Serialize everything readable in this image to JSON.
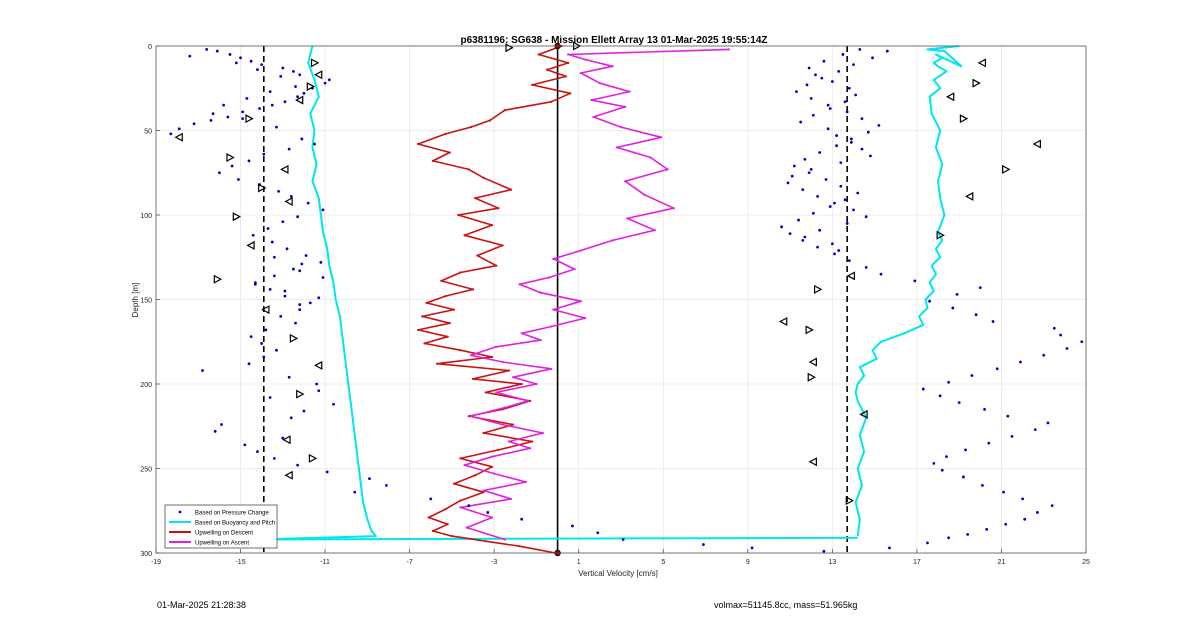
{
  "footer": {
    "left": "01-Mar-2025 21:28:38",
    "right": "volmax=51145.8cc, mass=51.965kg"
  },
  "colors": {
    "pressure_points": "#0000cc",
    "buoyancy": "#00e5ee",
    "descent": "#cc1111",
    "ascent": "#e020e0",
    "grid": "#e6e6e6",
    "dashed": "#000000"
  },
  "chart_data": {
    "type": "line",
    "title": "p6381196: SG638 - Mission Ellett Array 13 01-Mar-2025 19:55:14Z",
    "xlabel": "Vertical Velocity [cm/s]",
    "ylabel": "Depth [m]",
    "xlim": [
      -19,
      25
    ],
    "ylim": [
      0,
      300
    ],
    "y_reversed": true,
    "xticks": [
      -19,
      -15,
      -11,
      -7,
      -3,
      1,
      5,
      9,
      13,
      17,
      21,
      25
    ],
    "yticks": [
      0,
      50,
      100,
      150,
      200,
      250,
      300
    ],
    "grid": true,
    "legend_position": "bottom-left",
    "reference_lines": {
      "zero_line_x": 0,
      "dashed_x": [
        -13.9,
        13.7
      ]
    },
    "legend": [
      "Based on Pressure Change",
      "Based on Buoyancy and Pitch",
      "Upwelling on Descent",
      "Upwelling on Ascent"
    ],
    "series": [
      {
        "name": "Based on Buoyancy and Pitch",
        "kind": "line",
        "segments": [
          {
            "part": "descent",
            "x": [
              -11.6,
              -11.8,
              -11.5,
              -11.3,
              -11.7,
              -11.5,
              -11.6,
              -11.4,
              -11.6,
              -11.3,
              -11.2,
              -11.1,
              -10.9,
              -10.8,
              -10.6,
              -10.5,
              -10.3,
              -10.2,
              -10.1,
              -10.0,
              -9.9,
              -9.8,
              -9.7,
              -9.6,
              -9.5,
              -9.4,
              -9.3,
              -9.2,
              -9.0,
              -8.8,
              -8.6,
              -14.2
            ],
            "y": [
              0,
              10,
              20,
              30,
              40,
              50,
              60,
              70,
              80,
              90,
              100,
              110,
              120,
              130,
              140,
              150,
              160,
              170,
              180,
              190,
              200,
              210,
              220,
              230,
              240,
              250,
              260,
              270,
              280,
              287,
              290,
              292
            ]
          },
          {
            "part": "bottom",
            "x": [
              -14.2,
              14.2
            ],
            "y": [
              292,
              291
            ]
          },
          {
            "part": "ascent",
            "x": [
              14.2,
              14.3,
              14.1,
              14.4,
              14.2,
              14.5,
              14.3,
              14.6,
              14.2,
              14.1,
              14.2,
              14.5,
              14.3,
              15.1,
              14.9,
              15.3,
              16.4,
              17.3,
              17.1,
              17.5,
              17.4,
              17.8,
              17.6,
              17.9,
              17.7,
              18.1,
              17.9,
              18.2,
              18.0,
              18.3,
              18.1,
              18.0,
              18.2,
              17.9,
              18.1,
              17.7,
              17.6,
              18.1,
              17.8,
              18.4,
              18.0,
              17.8,
              18.2,
              17.9,
              19.1,
              18.3,
              17.5,
              19.0
            ],
            "y": [
              290,
              280,
              270,
              260,
              250,
              240,
              230,
              220,
              210,
              205,
              200,
              195,
              190,
              185,
              180,
              175,
              170,
              165,
              160,
              155,
              150,
              145,
              140,
              135,
              130,
              125,
              120,
              115,
              110,
              100,
              90,
              80,
              70,
              60,
              50,
              40,
              30,
              25,
              20,
              15,
              12,
              10,
              7,
              5,
              12,
              3,
              2,
              0
            ]
          }
        ]
      },
      {
        "name": "Upwelling on Descent",
        "kind": "line",
        "x": [
          0.2,
          -0.9,
          0.5,
          -0.5,
          0.4,
          -1.2,
          0.6,
          -0.3,
          -2.5,
          -3.2,
          -4.1,
          -5.3,
          -6.6,
          -5.1,
          -5.9,
          -4.2,
          -3.5,
          -2.2,
          -3.9,
          -2.8,
          -4.7,
          -3.1,
          -4.4,
          -2.6,
          -3.8,
          -2.9,
          -4.6,
          -5.5,
          -4.0,
          -5.3,
          -6.2,
          -4.9,
          -6.4,
          -5.1,
          -6.6,
          -5.2,
          -6.3,
          -4.6,
          -3.1,
          -5.7,
          -2.3,
          -4.0,
          -1.7,
          -3.4,
          -1.3,
          -2.6,
          -4.2,
          -2.1,
          -3.5,
          -1.2,
          -2.8,
          -4.6,
          -3.1,
          -3.9,
          -4.9,
          -3.5,
          -4.6,
          -5.3,
          -6.1,
          -5.2,
          -5.9,
          -5.0,
          -3.4,
          -1.8,
          -0.1
        ],
        "y": [
          0,
          5,
          10,
          14,
          18,
          23,
          28,
          33,
          38,
          44,
          48,
          52,
          58,
          63,
          68,
          73,
          78,
          85,
          90,
          96,
          100,
          106,
          112,
          118,
          124,
          130,
          134,
          139,
          144,
          148,
          152,
          156,
          160,
          164,
          168,
          172,
          176,
          180,
          184,
          188,
          192,
          197,
          200,
          205,
          210,
          215,
          219,
          224,
          229,
          234,
          239,
          244,
          249,
          254,
          259,
          264,
          269,
          274,
          279,
          283,
          287,
          290,
          293,
          296,
          300
        ]
      },
      {
        "name": "Upwelling on Ascent",
        "kind": "line",
        "x": [
          -2.5,
          -4.3,
          -3.1,
          -4.6,
          -2.2,
          -3.5,
          -1.5,
          -3.0,
          -4.4,
          -3.1,
          -1.3,
          -2.3,
          -0.7,
          -2.6,
          -4.1,
          -2.5,
          -1.4,
          -2.9,
          -1.0,
          -2.1,
          -0.3,
          -2.6,
          -4.1,
          -2.9,
          -0.8,
          -1.7,
          -0.3,
          1.3,
          -0.2,
          1.1,
          -0.8,
          -1.8,
          -0.4,
          0.8,
          -0.2,
          1.1,
          2.6,
          4.6,
          3.3,
          5.5,
          4.1,
          3.2,
          5.2,
          4.4,
          2.8,
          4.9,
          3.0,
          1.7,
          3.2,
          1.6,
          3.4,
          2.0,
          1.1,
          2.6,
          1.3,
          0.5,
          8.1
        ],
        "y": [
          292,
          285,
          279,
          273,
          268,
          263,
          258,
          253,
          248,
          243,
          238,
          234,
          229,
          224,
          219,
          214,
          210,
          205,
          200,
          196,
          191,
          187,
          183,
          178,
          174,
          170,
          166,
          161,
          156,
          151,
          146,
          141,
          137,
          132,
          126,
          121,
          115,
          109,
          102,
          96,
          88,
          80,
          73,
          66,
          60,
          54,
          48,
          42,
          36,
          32,
          27,
          22,
          16,
          12,
          8,
          5,
          2
        ]
      },
      {
        "name": "Based on Pressure Change",
        "kind": "points",
        "x": [
          -18.3,
          -17.9,
          -17.2,
          -16.4,
          -15.6,
          -14.9,
          -14.1,
          -13.5,
          -12.9,
          -12.3,
          -12.0,
          -11.6,
          -11.0,
          -10.8,
          -12.2,
          -12.5,
          -13.0,
          -14.0,
          -14.5,
          -15.0,
          -15.5,
          -16.1,
          -16.6,
          -17.4,
          -15.2,
          -14.2,
          -13.1,
          -12.4,
          -13.6,
          -14.7,
          -15.8,
          -16.3,
          -14.9,
          -13.3,
          -12.1,
          -11.5,
          -12.7,
          -13.9,
          -14.6,
          -15.4,
          -16.0,
          -15.1,
          -14.1,
          -13.2,
          -12.6,
          -11.8,
          -11.1,
          -12.3,
          -13.0,
          -13.7,
          -14.4,
          -13.5,
          -12.8,
          -11.9,
          -11.2,
          -12.5,
          -13.4,
          -14.3,
          -13.6,
          -12.9,
          -11.7,
          -12.2,
          -13.1,
          -12.4,
          -13.8,
          -14.5,
          -14.0,
          -13.3,
          -13.9,
          -14.6,
          -16.8,
          -12.7,
          -11.4,
          -11.3,
          -13.6,
          -10.6,
          -12.0,
          -12.6,
          -15.9,
          -16.2,
          -13.0,
          -14.8,
          -14.2,
          -13.4,
          -12.3,
          -10.9,
          -8.9,
          -8.1,
          -9.6,
          -6.0,
          -4.2,
          -3.3,
          -1.7,
          0.7,
          1.9,
          3.1,
          6.9,
          9.2,
          12.6,
          15.7,
          17.5,
          18.5,
          19.4,
          20.3,
          21.2,
          22.1,
          22.7,
          23.4,
          22.0,
          21.1,
          20.1,
          19.2,
          18.2,
          17.8,
          18.4,
          19.3,
          20.4,
          21.5,
          22.6,
          23.2,
          21.3,
          20.2,
          19.0,
          18.1,
          17.3,
          18.5,
          19.6,
          20.8,
          21.9,
          23.0,
          24.1,
          24.8,
          23.8,
          23.5,
          20.6,
          19.8,
          18.7,
          17.6,
          18.9,
          20.0,
          16.9,
          15.3,
          14.6,
          13.8,
          13.1,
          12.3,
          11.6,
          11.0,
          10.6,
          11.4,
          12.1,
          12.9,
          13.6,
          14.2,
          13.4,
          12.7,
          11.9,
          11.2,
          11.7,
          12.4,
          13.2,
          13.9,
          14.7,
          15.2,
          14.4,
          13.7,
          12.8,
          12.0,
          11.3,
          11.8,
          12.5,
          13.3,
          14.0,
          14.9,
          15.6,
          14.3,
          13.5,
          12.6,
          11.9,
          12.2,
          13.0,
          13.8,
          14.1,
          13.6,
          12.9,
          12.1,
          11.5,
          12.8,
          13.2,
          13.9,
          14.4,
          14.8,
          13.4,
          12.0,
          11.1,
          10.9,
          11.6,
          12.3,
          13.1,
          14.0,
          14.6,
          13.7,
          12.4,
          11.7,
          13.0,
          13.3,
          -13.4,
          -12.1,
          -12.2,
          -11.1,
          -14.3,
          -12.9,
          -11.3,
          -12.2
        ],
        "y": [
          52,
          49,
          46,
          44,
          42,
          39,
          37,
          35,
          33,
          30,
          28,
          25,
          22,
          20,
          17,
          15,
          13,
          11,
          9,
          7,
          5,
          3,
          2,
          6,
          10,
          14,
          18,
          24,
          27,
          31,
          35,
          40,
          43,
          48,
          55,
          58,
          61,
          64,
          68,
          71,
          75,
          79,
          82,
          86,
          89,
          93,
          97,
          101,
          104,
          108,
          112,
          116,
          120,
          124,
          128,
          132,
          136,
          140,
          144,
          148,
          152,
          156,
          160,
          164,
          168,
          172,
          176,
          180,
          184,
          188,
          192,
          196,
          200,
          204,
          208,
          212,
          216,
          220,
          224,
          228,
          232,
          236,
          240,
          244,
          248,
          252,
          256,
          260,
          264,
          268,
          272,
          276,
          280,
          284,
          288,
          292,
          295,
          297,
          299,
          297,
          294,
          291,
          289,
          286,
          283,
          280,
          276,
          272,
          268,
          264,
          260,
          255,
          251,
          247,
          243,
          239,
          235,
          231,
          227,
          223,
          219,
          215,
          211,
          207,
          203,
          199,
          195,
          191,
          187,
          183,
          179,
          175,
          171,
          167,
          163,
          159,
          155,
          151,
          147,
          143,
          139,
          135,
          131,
          127,
          123,
          119,
          115,
          111,
          107,
          103,
          99,
          95,
          91,
          87,
          83,
          79,
          75,
          71,
          67,
          63,
          59,
          55,
          51,
          47,
          43,
          39,
          35,
          31,
          27,
          23,
          19,
          15,
          11,
          7,
          3,
          2,
          5,
          9,
          13,
          17,
          21,
          25,
          29,
          33,
          37,
          41,
          45,
          49,
          53,
          57,
          61,
          65,
          69,
          73,
          77,
          81,
          85,
          89,
          93,
          97,
          101,
          105,
          109,
          113,
          117,
          121,
          125,
          129,
          133,
          137,
          141,
          145,
          149,
          153
        ]
      },
      {
        "name": "Based on Pressure Change (markers)",
        "kind": "triangle_markers",
        "x": [
          -11.5,
          -11.3,
          -11.7,
          -12.2,
          -14.6,
          -17.9,
          -15.5,
          -12.9,
          -14.0,
          -12.7,
          -15.2,
          -14.5,
          -16.1,
          -13.8,
          -12.5,
          -11.3,
          -12.2,
          -12.8,
          -11.6,
          -12.7,
          -14.5,
          -14.2,
          -2.3,
          0.9,
          20.1,
          19.8,
          18.6,
          19.2,
          22.7,
          21.2,
          19.5,
          18.1,
          13.9,
          12.3,
          10.7,
          11.9,
          12.1,
          12.0,
          14.5,
          13.8,
          12.1
        ],
        "y": [
          10,
          17,
          24,
          32,
          43,
          54,
          66,
          73,
          84,
          92,
          101,
          118,
          138,
          156,
          173,
          189,
          206,
          233,
          244,
          254,
          278,
          290,
          1,
          0,
          10,
          22,
          30,
          43,
          58,
          73,
          89,
          112,
          136,
          144,
          163,
          168,
          187,
          196,
          218,
          269,
          246
        ]
      }
    ]
  }
}
